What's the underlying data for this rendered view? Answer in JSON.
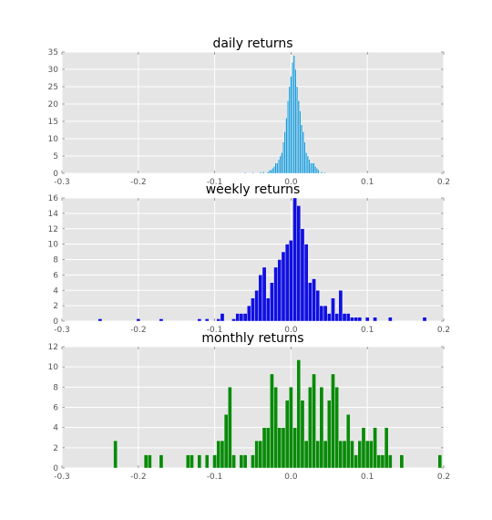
{
  "chart_data": [
    {
      "type": "bar",
      "title": "daily returns",
      "color": "#1f9bd7",
      "xlim": [
        -0.3,
        0.2
      ],
      "ylim": [
        0,
        35
      ],
      "xticks": [
        "-0.3",
        "-0.2",
        "-0.1",
        "0.0",
        "0.1",
        "0.2"
      ],
      "yticks": [
        "0",
        "5",
        "10",
        "15",
        "20",
        "25",
        "30",
        "35"
      ],
      "bin_width": 0.002,
      "x": [
        -0.06,
        -0.05,
        -0.04,
        -0.036,
        -0.03,
        -0.028,
        -0.026,
        -0.024,
        -0.022,
        -0.02,
        -0.018,
        -0.016,
        -0.014,
        -0.012,
        -0.01,
        -0.008,
        -0.006,
        -0.004,
        -0.002,
        0.0,
        0.002,
        0.004,
        0.006,
        0.008,
        0.01,
        0.012,
        0.014,
        0.016,
        0.018,
        0.02,
        0.022,
        0.024,
        0.026,
        0.028,
        0.03,
        0.032,
        0.034,
        0.036,
        0.04,
        0.044
      ],
      "values": [
        0.3,
        0.3,
        0.4,
        0.5,
        0.5,
        1,
        1,
        1.5,
        2,
        3,
        3,
        4,
        5,
        6,
        9,
        12,
        16,
        21,
        25,
        28,
        32,
        34,
        30,
        25,
        21,
        18,
        14,
        12,
        9,
        6,
        5,
        4,
        3,
        3,
        3,
        2,
        1.5,
        1,
        0.5,
        0.3
      ]
    },
    {
      "type": "bar",
      "title": "weekly returns",
      "color": "#1010e0",
      "xlim": [
        -0.3,
        0.2
      ],
      "ylim": [
        0,
        16
      ],
      "xticks": [
        "-0.3",
        "-0.2",
        "-0.1",
        "0.0",
        "0.1",
        "0.2"
      ],
      "yticks": [
        "0",
        "2",
        "4",
        "6",
        "8",
        "10",
        "12",
        "14",
        "16"
      ],
      "bin_width": 0.005,
      "x": [
        -0.25,
        -0.2,
        -0.17,
        -0.12,
        -0.11,
        -0.095,
        -0.09,
        -0.075,
        -0.07,
        -0.065,
        -0.06,
        -0.055,
        -0.05,
        -0.045,
        -0.04,
        -0.035,
        -0.03,
        -0.025,
        -0.02,
        -0.015,
        -0.01,
        -0.005,
        0.0,
        0.005,
        0.01,
        0.015,
        0.02,
        0.025,
        0.03,
        0.035,
        0.04,
        0.045,
        0.05,
        0.055,
        0.06,
        0.065,
        0.07,
        0.075,
        0.08,
        0.085,
        0.09,
        0.1,
        0.11,
        0.13,
        0.175
      ],
      "values": [
        0.3,
        0.3,
        0.3,
        0.3,
        0.3,
        0.3,
        1,
        0.3,
        1,
        1,
        1,
        2,
        3,
        4,
        6,
        7,
        3,
        5,
        7,
        8,
        9,
        10,
        10.5,
        16,
        15,
        12,
        10,
        5,
        5.5,
        4,
        2,
        2,
        1,
        3,
        1,
        4,
        1,
        1,
        0.5,
        0.5,
        0.5,
        0.5,
        0.5,
        0.5,
        0.5
      ]
    },
    {
      "type": "bar",
      "title": "monthly returns",
      "color": "#0a8a0a",
      "xlim": [
        -0.3,
        0.2
      ],
      "ylim": [
        0,
        12
      ],
      "xticks": [
        "-0.3",
        "-0.2",
        "-0.1",
        "0.0",
        "0.1",
        "0.2"
      ],
      "yticks": [
        "0",
        "2",
        "4",
        "6",
        "8",
        "10",
        "12"
      ],
      "bin_width": 0.005,
      "x": [
        -0.23,
        -0.19,
        -0.185,
        -0.17,
        -0.135,
        -0.13,
        -0.12,
        -0.11,
        -0.105,
        -0.1,
        -0.095,
        -0.09,
        -0.085,
        -0.08,
        -0.075,
        -0.065,
        -0.06,
        -0.055,
        -0.05,
        -0.045,
        -0.04,
        -0.035,
        -0.03,
        -0.025,
        -0.02,
        -0.015,
        -0.01,
        -0.005,
        0.0,
        0.005,
        0.01,
        0.015,
        0.02,
        0.025,
        0.03,
        0.035,
        0.04,
        0.045,
        0.05,
        0.055,
        0.06,
        0.065,
        0.07,
        0.075,
        0.08,
        0.085,
        0.09,
        0.095,
        0.1,
        0.105,
        0.11,
        0.115,
        0.12,
        0.125,
        0.13,
        0.145,
        0.195
      ],
      "values": [
        2.7,
        1.3,
        1.3,
        1.3,
        1.3,
        1.3,
        1.3,
        1.3,
        0,
        1.3,
        2.7,
        2.7,
        5.3,
        8,
        1.3,
        1.3,
        1.3,
        0,
        1.3,
        2.7,
        2.7,
        4,
        4,
        9.3,
        8,
        4,
        4,
        6.7,
        8,
        4,
        10.7,
        6.7,
        2.7,
        8,
        9.3,
        2.7,
        8,
        2.7,
        6.7,
        9.3,
        8,
        2.7,
        2.7,
        5.3,
        2.7,
        1.3,
        2.7,
        4,
        2.7,
        2.7,
        4,
        1.3,
        1.3,
        4,
        1.3,
        1.3,
        1.3
      ]
    }
  ]
}
